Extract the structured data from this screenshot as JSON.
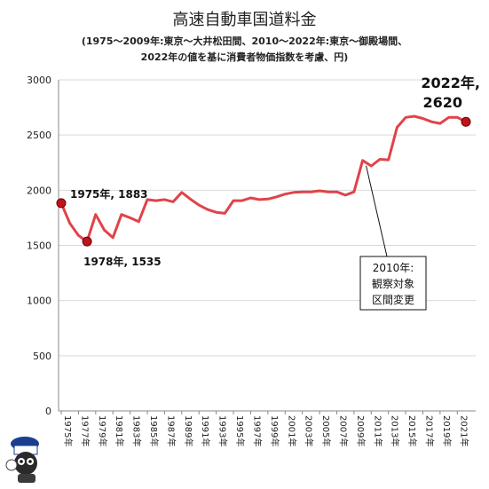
{
  "title": "高速自動車国道料金",
  "subtitle_line1": "(1975～2009年:東京～大井松田間、2010～2022年:東京～御殿場間、",
  "subtitle_line2": "2022年の値を基に消費者物価指数を考慮、円)",
  "colors": {
    "line": "#e0434a",
    "marker": "#c0141c",
    "grid": "#d9d9d9"
  },
  "chart_data": {
    "type": "line",
    "title": "高速自動車国道料金",
    "subtitle": "(1975～2009年:東京～大井松田間、2010～2022年:東京～御殿場間、2022年の値を基に消費者物価指数を考慮、円)",
    "xlabel": "",
    "ylabel": "",
    "ylim": [
      0,
      3000
    ],
    "yticks": [
      0,
      500,
      1000,
      1500,
      2000,
      2500,
      3000
    ],
    "xtick_labels": [
      "1975年",
      "1977年",
      "1979年",
      "1981年",
      "1983年",
      "1985年",
      "1987年",
      "1989年",
      "1991年",
      "1993年",
      "1995年",
      "1997年",
      "1999年",
      "2001年",
      "2003年",
      "2005年",
      "2007年",
      "2009年",
      "2011年",
      "2013年",
      "2015年",
      "2017年",
      "2019年",
      "2021年"
    ],
    "grid": "horizontal",
    "series": [
      {
        "x": [
          1975,
          1976,
          1977,
          1978,
          1979,
          1980,
          1981,
          1982,
          1983,
          1984,
          1985,
          1986,
          1987,
          1988,
          1989,
          1990,
          1991,
          1992,
          1993,
          1994,
          1995,
          1996,
          1997,
          1998,
          1999,
          2000,
          2001,
          2002,
          2003,
          2004,
          2005,
          2006,
          2007,
          2008,
          2009,
          2010,
          2011,
          2012,
          2013,
          2014,
          2015,
          2016,
          2017,
          2018,
          2019,
          2020,
          2021,
          2022
        ],
        "values": [
          1883,
          1700,
          1590,
          1535,
          1780,
          1640,
          1570,
          1780,
          1750,
          1715,
          1915,
          1905,
          1915,
          1895,
          1980,
          1920,
          1865,
          1825,
          1800,
          1790,
          1905,
          1905,
          1930,
          1915,
          1920,
          1940,
          1965,
          1980,
          1985,
          1985,
          1995,
          1985,
          1985,
          1955,
          1985,
          2270,
          2220,
          2280,
          2275,
          2570,
          2660,
          2670,
          2650,
          2620,
          2605,
          2660,
          2660,
          2620
        ]
      }
    ],
    "annotations": [
      {
        "label": "1975年, 1883",
        "x": 1975,
        "y": 1883
      },
      {
        "label": "1978年, 1535",
        "x": 1978,
        "y": 1535
      },
      {
        "label_line1": "2022年,",
        "label_line2": "2620",
        "x": 2022,
        "y": 2620
      }
    ],
    "callout": {
      "line1": "2010年:",
      "line2": "観察対象",
      "line3": "区間変更",
      "x": 2010,
      "y": 2270
    }
  }
}
